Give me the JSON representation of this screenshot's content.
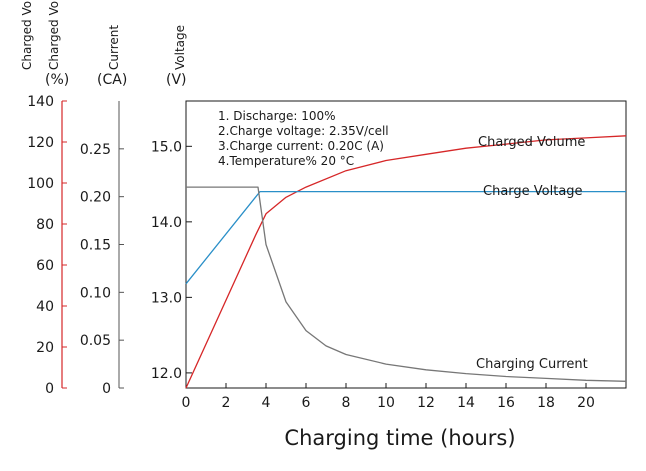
{
  "chart_data": {
    "type": "line",
    "title": "",
    "xlabel": "Charging time (hours)",
    "x_ticks": [
      0,
      2,
      4,
      6,
      8,
      10,
      12,
      14,
      16,
      18,
      20
    ],
    "x_tick_labels": [
      "0",
      "2",
      "4",
      "6",
      "8",
      "10",
      "12",
      "14",
      "16",
      "18",
      "20"
    ],
    "xlim": [
      0,
      22
    ],
    "axes": {
      "charged_volume": {
        "label": "Charged Volume",
        "unit": "(%)",
        "ticks": [
          0,
          20,
          40,
          60,
          80,
          100,
          120,
          140
        ],
        "tick_labels": [
          "0",
          "20",
          "40",
          "60",
          "80",
          "100",
          "120",
          "140"
        ],
        "range": [
          0,
          140
        ],
        "color": "#d62728"
      },
      "current": {
        "label": "Current",
        "unit": "(CA)",
        "ticks": [
          0,
          0.05,
          0.1,
          0.15,
          0.2,
          0.25
        ],
        "tick_labels": [
          "0",
          "0.05",
          "0.10",
          "0.15",
          "0.20",
          "0.25"
        ],
        "range": [
          0,
          0.3
        ],
        "color": "#333333"
      },
      "voltage": {
        "label": "Voltage",
        "unit": "(V)",
        "ticks": [
          12.0,
          13.0,
          14.0,
          15.0
        ],
        "tick_labels": [
          "12.0",
          "13.0",
          "14.0",
          "15.0"
        ],
        "range": [
          11.8,
          15.6
        ],
        "color": "#2a8fc8"
      }
    },
    "notes": [
      "1. Discharge: 100%",
      "2.Charge voltage: 2.35V/cell",
      "3.Charge current: 0.20C (A)",
      "4.Temperature% 20 °C"
    ],
    "series": [
      {
        "name": "Charged Volume",
        "axis": "charged_volume",
        "color": "#d62728",
        "x": [
          0,
          3.5,
          4,
          5,
          6,
          8,
          10,
          12,
          14,
          16,
          18,
          20,
          22
        ],
        "y": [
          0,
          75,
          85,
          93,
          98,
          106,
          111,
          114,
          117,
          119,
          121,
          122,
          123
        ]
      },
      {
        "name": "Charge Voltage",
        "axis": "voltage",
        "color": "#2a8fc8",
        "x": [
          0,
          3.7,
          22
        ],
        "y": [
          13.18,
          14.4,
          14.4
        ]
      },
      {
        "name": "Charging Current",
        "axis": "current",
        "color": "#777777",
        "x": [
          0,
          3.6,
          4,
          5,
          6,
          7,
          8,
          10,
          12,
          14,
          16,
          18,
          20,
          22
        ],
        "y": [
          0.21,
          0.21,
          0.15,
          0.09,
          0.06,
          0.044,
          0.035,
          0.025,
          0.019,
          0.015,
          0.012,
          0.01,
          0.008,
          0.007
        ]
      }
    ]
  }
}
